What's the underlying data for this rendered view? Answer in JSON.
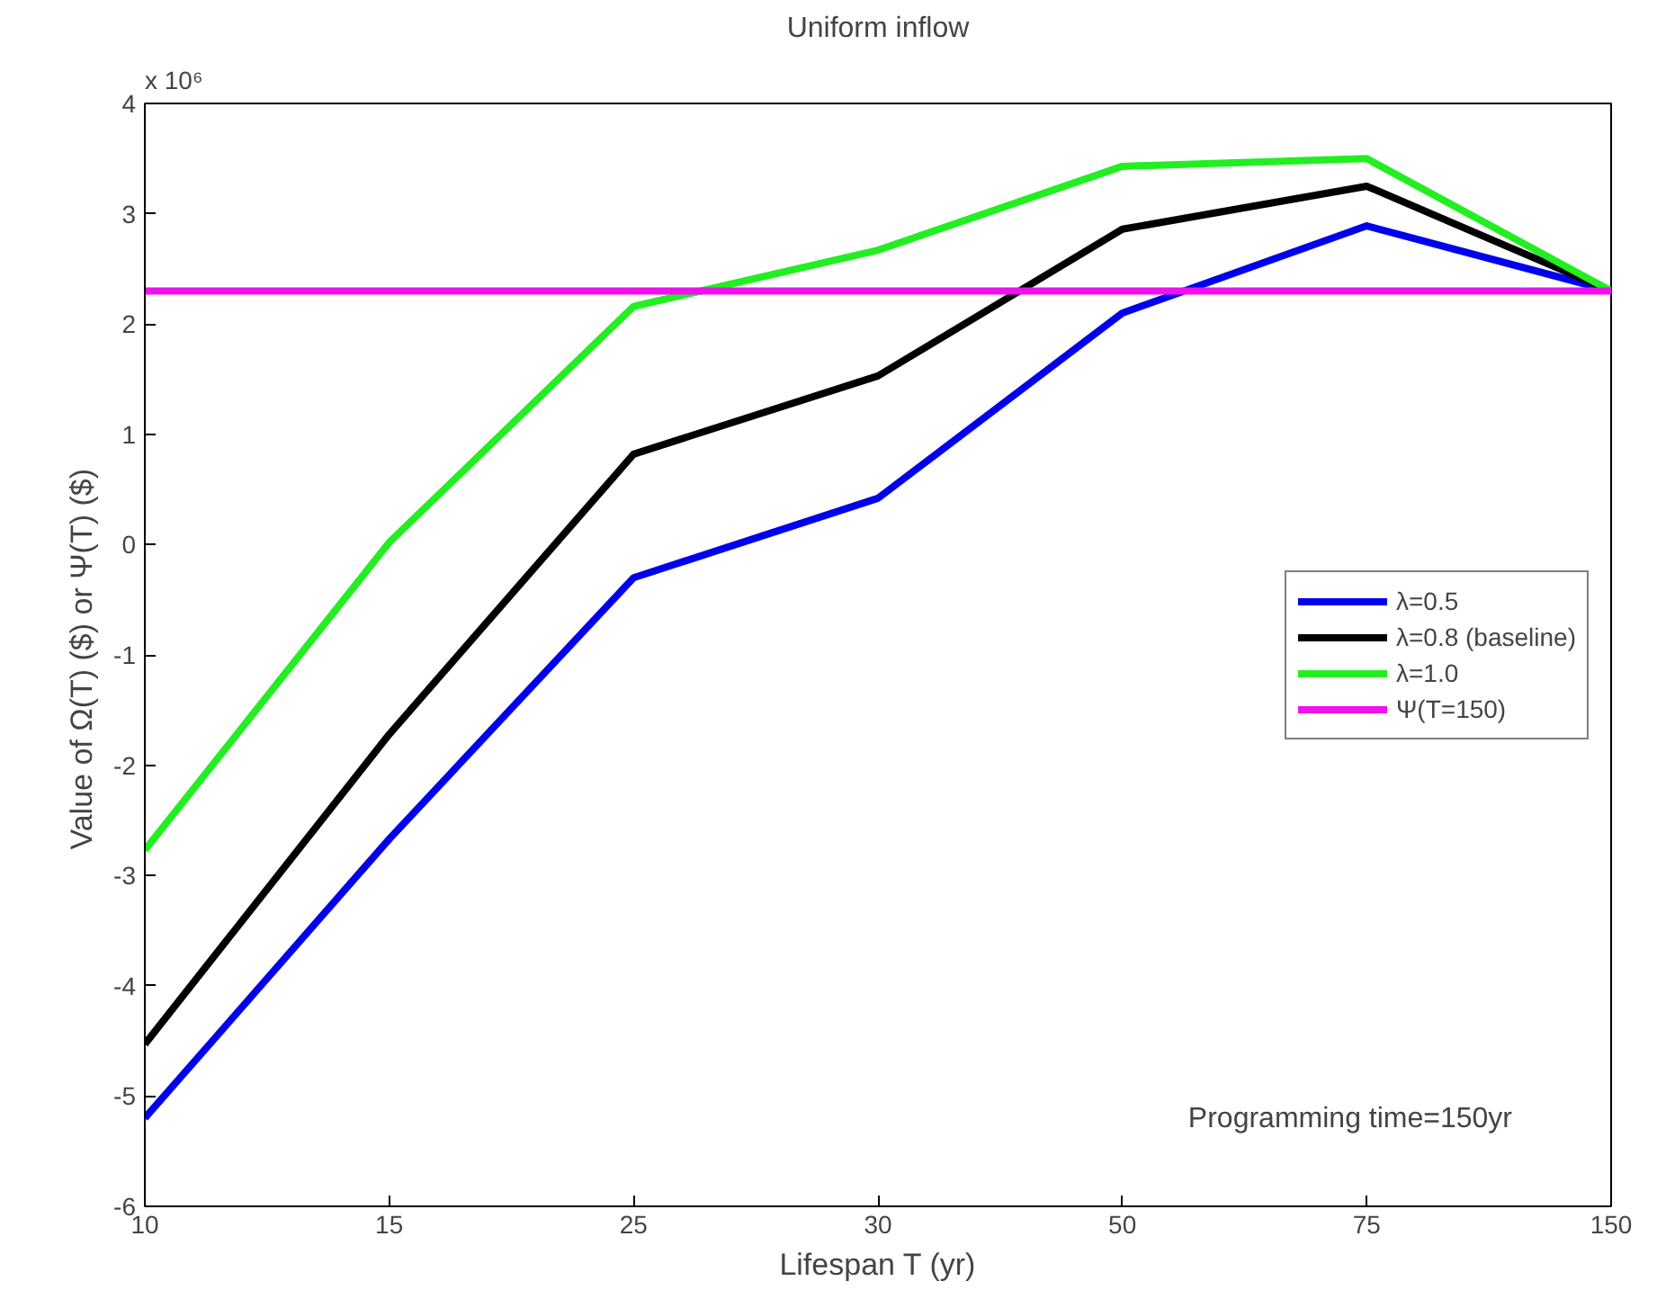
{
  "chart_data": {
    "type": "line",
    "title": "Uniform inflow",
    "xlabel": "Lifespan T (yr)",
    "ylabel": "Value of  Ω(T) ($) or Ψ(T) ($)",
    "categories": [
      "10",
      "15",
      "25",
      "30",
      "50",
      "75",
      "150"
    ],
    "series": [
      {
        "name": "λ=0.5",
        "color": "#0000ee",
        "values": [
          -5.2,
          -2.67,
          -0.3,
          0.42,
          2.1,
          2.89,
          2.3
        ]
      },
      {
        "name": "λ=0.8 (baseline)",
        "color": "#000000",
        "values": [
          -4.53,
          -1.72,
          0.82,
          1.53,
          2.86,
          3.25,
          2.3
        ]
      },
      {
        "name": "λ=1.0",
        "color": "#22ee22",
        "values": [
          -2.77,
          0.02,
          2.16,
          2.67,
          3.43,
          3.5,
          2.3
        ]
      },
      {
        "name": "Ψ(T=150)",
        "color": "#ee11ee",
        "values": [
          2.3,
          2.3,
          2.3,
          2.3,
          2.3,
          2.3,
          2.3
        ]
      }
    ],
    "ylim": [
      -6,
      4
    ],
    "yticks": [
      -6,
      -5,
      -4,
      -3,
      -2,
      -1,
      0,
      1,
      2,
      3,
      4
    ],
    "annotations": [
      "x 10⁶",
      "Programming time=150yr"
    ],
    "legend": "right",
    "grid": false,
    "marker": "none",
    "line_style": "solid"
  }
}
